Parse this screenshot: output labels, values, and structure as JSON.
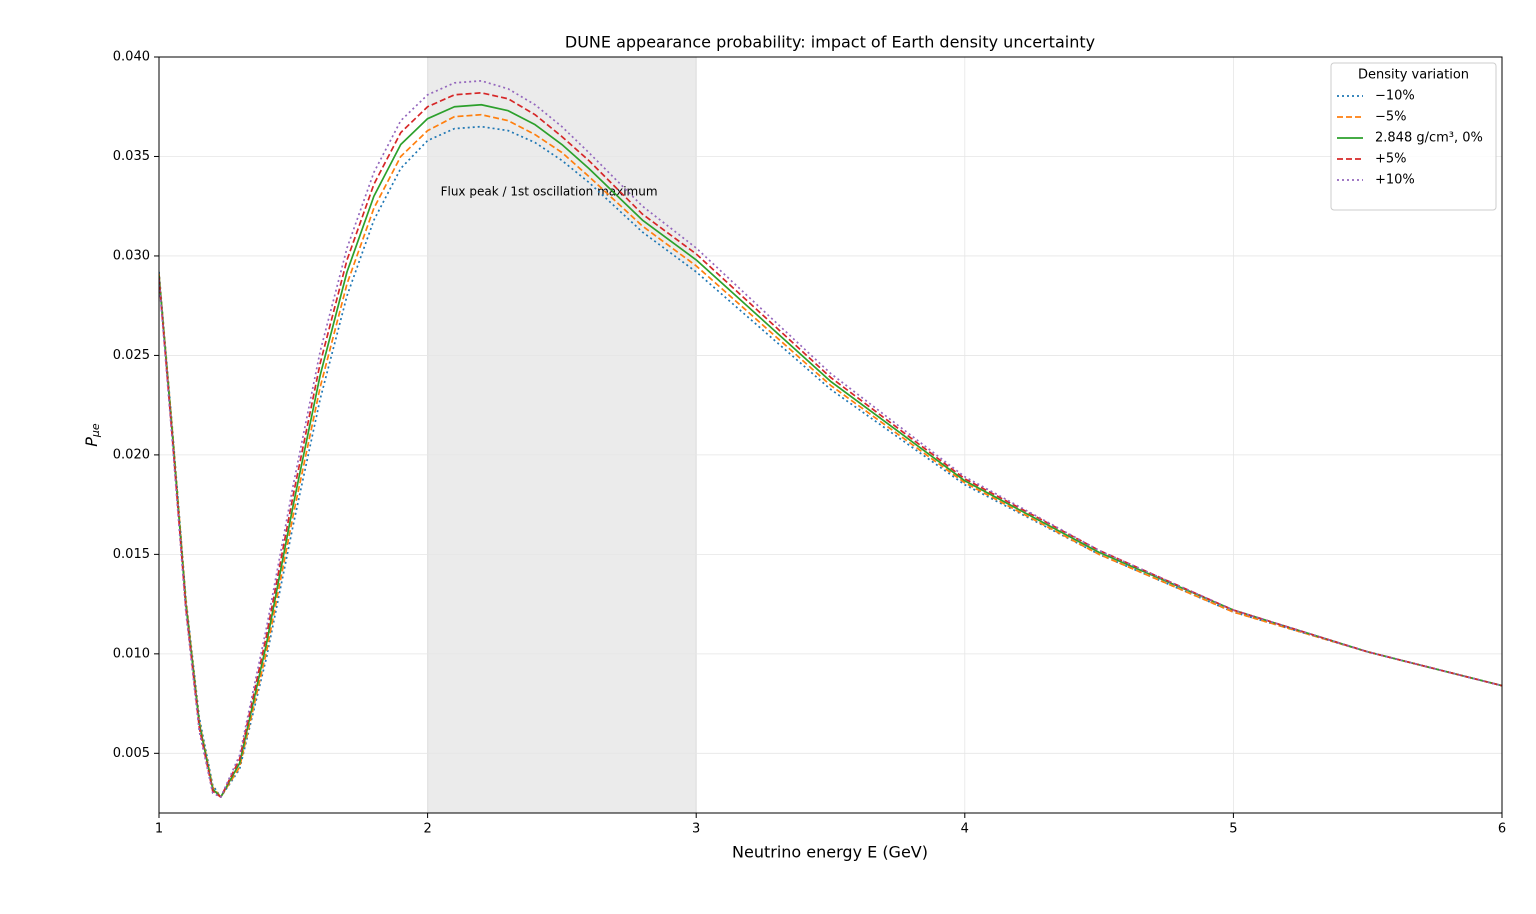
{
  "chart_data": {
    "type": "line",
    "title": "DUNE appearance probability: impact of Earth density uncertainty",
    "xlabel": "Neutrino energy E (GeV)",
    "ylabel_symbol": "P",
    "ylabel_subscript": "μe",
    "x": [
      1.0,
      1.05,
      1.1,
      1.15,
      1.2,
      1.23,
      1.3,
      1.4,
      1.5,
      1.6,
      1.7,
      1.8,
      1.9,
      2.0,
      2.1,
      2.2,
      2.3,
      2.4,
      2.5,
      2.6,
      2.8,
      3.0,
      3.5,
      4.0,
      4.5,
      5.0,
      5.5,
      6.0
    ],
    "series": [
      {
        "name": "−10%",
        "color": "#1f77b4",
        "linestyle": "dotted",
        "values": [
          0.0292,
          0.0213,
          0.0128,
          0.0068,
          0.0034,
          0.0028,
          0.0042,
          0.0098,
          0.0165,
          0.0228,
          0.028,
          0.0318,
          0.0344,
          0.0358,
          0.0364,
          0.0365,
          0.0363,
          0.0357,
          0.0348,
          0.0337,
          0.0312,
          0.0292,
          0.0233,
          0.0185,
          0.015,
          0.0121,
          0.0101,
          0.0084
        ]
      },
      {
        "name": "−5%",
        "color": "#ff7f0e",
        "linestyle": "dashed",
        "values": [
          0.0291,
          0.0212,
          0.0127,
          0.0066,
          0.0033,
          0.0028,
          0.0043,
          0.0101,
          0.017,
          0.0234,
          0.0286,
          0.0324,
          0.035,
          0.0363,
          0.037,
          0.0371,
          0.0368,
          0.0361,
          0.0352,
          0.034,
          0.0315,
          0.0295,
          0.0235,
          0.0186,
          0.015,
          0.0121,
          0.0101,
          0.0084
        ]
      },
      {
        "name": "2.848 g/cm³, 0%",
        "color": "#2ca02c",
        "linestyle": "solid",
        "values": [
          0.029,
          0.021,
          0.0125,
          0.0065,
          0.0032,
          0.0028,
          0.0045,
          0.0105,
          0.0175,
          0.024,
          0.0292,
          0.033,
          0.0356,
          0.0369,
          0.0375,
          0.0376,
          0.0373,
          0.0366,
          0.0356,
          0.0344,
          0.0318,
          0.0298,
          0.0237,
          0.0187,
          0.0151,
          0.0122,
          0.0101,
          0.0084
        ]
      },
      {
        "name": "+5%",
        "color": "#d62728",
        "linestyle": "dashed",
        "values": [
          0.0289,
          0.0208,
          0.0123,
          0.0063,
          0.0031,
          0.0028,
          0.0047,
          0.0109,
          0.018,
          0.0246,
          0.0298,
          0.0336,
          0.0362,
          0.0375,
          0.0381,
          0.0382,
          0.0379,
          0.0371,
          0.036,
          0.0348,
          0.0321,
          0.0301,
          0.0239,
          0.0188,
          0.0152,
          0.0122,
          0.0101,
          0.0084
        ]
      },
      {
        "name": "+10%",
        "color": "#9467bd",
        "linestyle": "dotted",
        "values": [
          0.0288,
          0.0206,
          0.0121,
          0.0061,
          0.003,
          0.0028,
          0.0049,
          0.0113,
          0.0185,
          0.0252,
          0.0304,
          0.0342,
          0.0368,
          0.0381,
          0.0387,
          0.0388,
          0.0384,
          0.0376,
          0.0365,
          0.0352,
          0.0325,
          0.0304,
          0.0241,
          0.0189,
          0.0152,
          0.0122,
          0.0101,
          0.0084
        ]
      }
    ],
    "xlim": [
      1,
      6
    ],
    "xticks": [
      1,
      2,
      3,
      4,
      5,
      6
    ],
    "ylim": [
      0.002,
      0.04
    ],
    "yticks": [
      0.005,
      {
        "value": 0.01,
        "label": "0.010"
      },
      0.015,
      {
        "value": 0.02,
        "label": "0.020"
      },
      0.025,
      {
        "value": 0.03,
        "label": "0.030"
      },
      0.035,
      {
        "value": 0.04,
        "label": "0.040"
      }
    ],
    "grid": true,
    "shaded_span": [
      2,
      3
    ],
    "span_annotation": "Flux peak / 1st oscillation maximum",
    "legend_title": "Density variation",
    "legend_loc": "upper right"
  }
}
